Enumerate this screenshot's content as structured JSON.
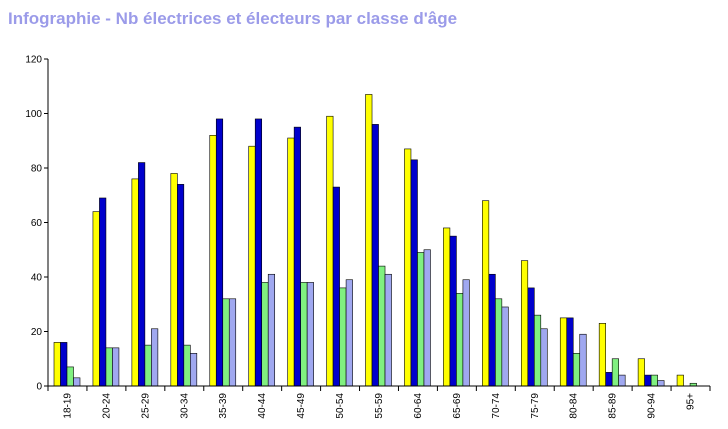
{
  "title": "Infographie - Nb électrices et électeurs par classe d'âge",
  "colors": {
    "title": "#9b9be9",
    "series": [
      "#ffff00",
      "#0000cc",
      "#80f080",
      "#a0a8f0"
    ],
    "axis": "#000000",
    "background": "#ffffff"
  },
  "chart_data": {
    "type": "bar",
    "categories": [
      "18-19",
      "20-24",
      "25-29",
      "30-34",
      "35-39",
      "40-44",
      "45-49",
      "50-54",
      "55-59",
      "60-64",
      "65-69",
      "70-74",
      "75-79",
      "80-84",
      "85-89",
      "90-94",
      "95+"
    ],
    "series": [
      {
        "values": [
          16,
          64,
          76,
          78,
          92,
          88,
          91,
          99,
          107,
          87,
          58,
          68,
          46,
          25,
          23,
          10,
          4
        ]
      },
      {
        "values": [
          16,
          69,
          82,
          74,
          98,
          98,
          95,
          73,
          96,
          83,
          55,
          41,
          36,
          25,
          5,
          4,
          0
        ]
      },
      {
        "values": [
          7,
          14,
          15,
          15,
          32,
          38,
          38,
          36,
          44,
          49,
          34,
          32,
          26,
          12,
          10,
          4,
          1
        ]
      },
      {
        "values": [
          3,
          14,
          21,
          12,
          32,
          41,
          38,
          39,
          41,
          50,
          39,
          29,
          21,
          19,
          4,
          2,
          0
        ]
      }
    ],
    "y_ticks": [
      "0",
      "20",
      "40",
      "60",
      "80",
      "100",
      "120"
    ],
    "ylim": [
      0,
      120
    ],
    "xlabel": "",
    "ylabel": "",
    "grid": false,
    "legend": "none"
  }
}
